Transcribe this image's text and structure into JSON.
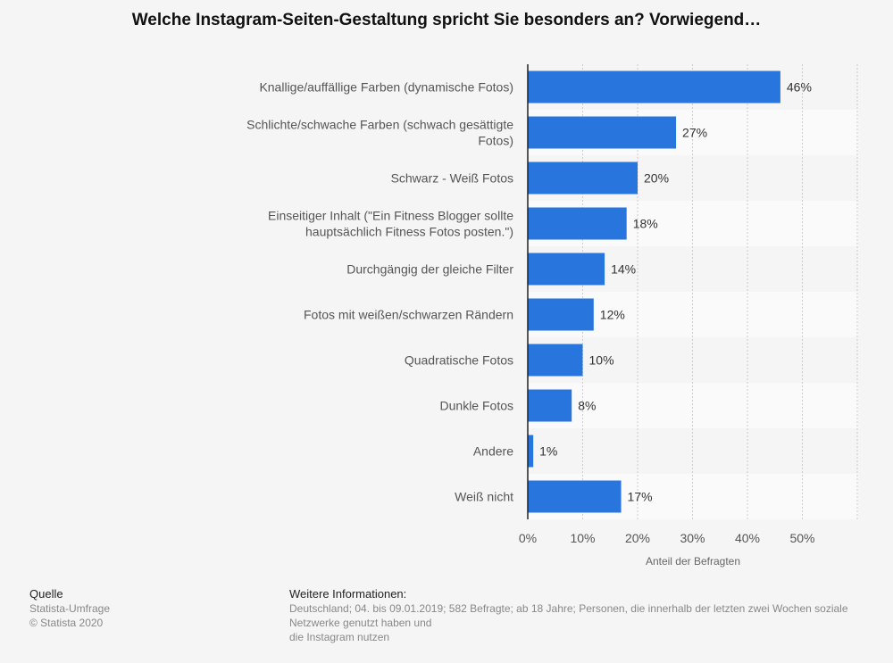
{
  "chart_data": {
    "type": "bar",
    "orientation": "horizontal",
    "title": "Welche Instagram-Seiten-Gestaltung spricht Sie besonders an? Vorwiegend…",
    "categories": [
      "Knallige/auffällige Farben (dynamische Fotos)",
      "Schlichte/schwache Farben (schwach gesättigte|Fotos)",
      "Schwarz - Weiß Fotos",
      "Einseitiger Inhalt (\"Ein Fitness Blogger sollte|hauptsächlich Fitness Fotos posten.\")",
      "Durchgängig der gleiche Filter",
      "Fotos mit weißen/schwarzen Rändern",
      "Quadratische Fotos",
      "Dunkle Fotos",
      "Andere",
      "Weiß nicht"
    ],
    "values": [
      46,
      27,
      20,
      18,
      14,
      12,
      10,
      8,
      1,
      17
    ],
    "data_labels": [
      "46%",
      "27%",
      "20%",
      "18%",
      "14%",
      "12%",
      "10%",
      "8%",
      "1%",
      "17%"
    ],
    "xlabel": "Anteil der Befragten",
    "xlim": [
      0,
      60
    ],
    "ticks": [
      "0%",
      "10%",
      "20%",
      "30%",
      "40%",
      "50%"
    ],
    "tick_values": [
      0,
      10,
      20,
      30,
      40,
      50
    ],
    "grid": true,
    "bar_color": "#2876dd"
  },
  "footer": {
    "source_heading": "Quelle",
    "source_lines": [
      "Statista-Umfrage",
      "© Statista 2020"
    ],
    "info_heading": "Weitere Informationen:",
    "info_lines": [
      "Deutschland; 04. bis 09.01.2019; 582 Befragte; ab 18 Jahre; Personen, die innerhalb der letzten zwei Wochen soziale Netzwerke genutzt haben und",
      "die Instagram nutzen"
    ]
  }
}
